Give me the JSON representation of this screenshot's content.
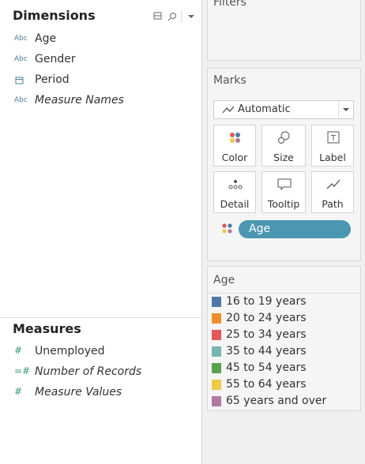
{
  "dimensions": {
    "title": "Dimensions",
    "items": [
      {
        "icon": "Abc",
        "label": "Age",
        "italic": false
      },
      {
        "icon": "Abc",
        "label": "Gender",
        "italic": false
      },
      {
        "icon": null,
        "label": "Period",
        "italic": false
      },
      {
        "icon": "Abc",
        "label": "Measure Names",
        "italic": true
      }
    ]
  },
  "measures": {
    "title": "Measures",
    "items": [
      {
        "icon": "#",
        "label": "Unemployed",
        "italic": false
      },
      {
        "icon": "=#",
        "label": "Number of Records",
        "italic": true
      },
      {
        "icon": "#",
        "label": "Measure Values",
        "italic": true
      }
    ]
  },
  "filters": {
    "title": "Filters"
  },
  "marks": {
    "title": "Marks",
    "mark_type": "Automatic",
    "cards": [
      "Color",
      "Size",
      "Label",
      "Detail",
      "Tooltip",
      "Path"
    ],
    "pill": {
      "label": "Age",
      "color": "#4b97b1"
    }
  },
  "legend": {
    "title": "Age",
    "items": [
      {
        "label": "16 to 19 years",
        "color": "#4e79a7"
      },
      {
        "label": "20 to 24 years",
        "color": "#f28e2b"
      },
      {
        "label": "25 to 34 years",
        "color": "#e15759"
      },
      {
        "label": "35 to 44 years",
        "color": "#76b7b2"
      },
      {
        "label": "45 to 54 years",
        "color": "#59a14f"
      },
      {
        "label": "55 to 64 years",
        "color": "#edc948"
      },
      {
        "label": "65 years and over",
        "color": "#b07aa1"
      }
    ]
  }
}
